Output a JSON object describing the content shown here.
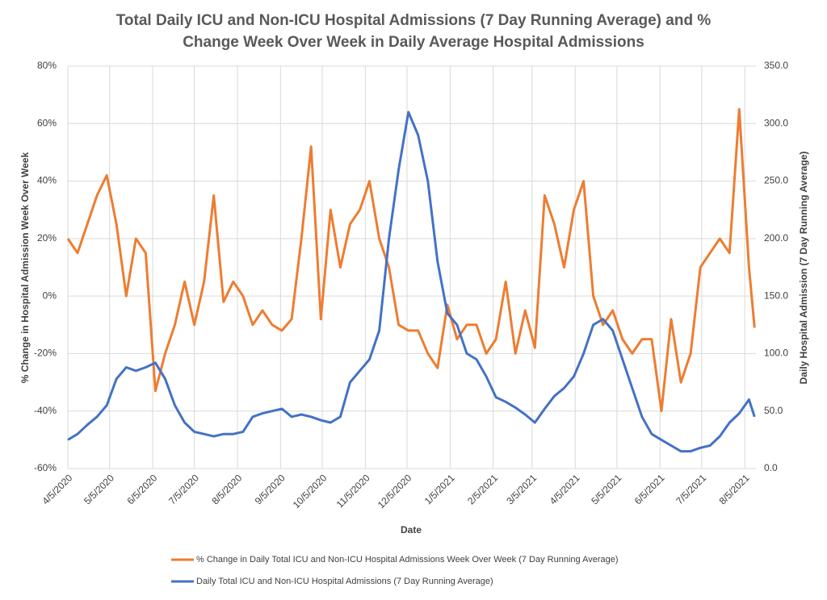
{
  "chart_data": {
    "type": "line",
    "title": "Total Daily ICU and Non-ICU Hospital Admissions (7 Day Running Average) and % Change Week Over Week in Daily Average Hospital Admissions",
    "x_label": "Date",
    "y_label": "% Change in Hospital Admission Week Over Week",
    "y2_label": "Daily Hospital Admission (7 Day Running Average)",
    "x": [
      "4/5/2020",
      "4/12/2020",
      "4/19/2020",
      "4/26/2020",
      "5/3/2020",
      "5/10/2020",
      "5/17/2020",
      "5/24/2020",
      "5/31/2020",
      "6/7/2020",
      "6/14/2020",
      "6/21/2020",
      "6/28/2020",
      "7/5/2020",
      "7/12/2020",
      "7/19/2020",
      "7/26/2020",
      "8/2/2020",
      "8/9/2020",
      "8/16/2020",
      "8/23/2020",
      "8/30/2020",
      "9/6/2020",
      "9/13/2020",
      "9/20/2020",
      "9/27/2020",
      "10/4/2020",
      "10/11/2020",
      "10/18/2020",
      "10/25/2020",
      "11/1/2020",
      "11/8/2020",
      "11/15/2020",
      "11/22/2020",
      "11/29/2020",
      "12/6/2020",
      "12/13/2020",
      "12/20/2020",
      "12/27/2020",
      "1/3/2021",
      "1/10/2021",
      "1/17/2021",
      "1/24/2021",
      "1/31/2021",
      "2/7/2021",
      "2/14/2021",
      "2/21/2021",
      "2/28/2021",
      "3/7/2021",
      "3/14/2021",
      "3/21/2021",
      "3/28/2021",
      "4/4/2021",
      "4/11/2021",
      "4/18/2021",
      "4/25/2021",
      "5/2/2021",
      "5/9/2021",
      "5/16/2021",
      "5/23/2021",
      "5/30/2021",
      "6/6/2021",
      "6/13/2021",
      "6/20/2021",
      "6/27/2021",
      "7/4/2021",
      "7/11/2021",
      "7/18/2021",
      "7/25/2021",
      "8/1/2021",
      "8/8/2021",
      "8/12/2021"
    ],
    "series": [
      {
        "name": "% Change in Daily Total ICU and Non-ICU Hospital Admissions Week Over Week (7 Day Running Average)",
        "color": "#ed7d31",
        "axis": "y",
        "values": [
          20,
          15,
          25,
          35,
          42,
          25,
          0,
          20,
          15,
          -33,
          -20,
          -10,
          5,
          -10,
          5,
          35,
          -2,
          5,
          0,
          -10,
          -5,
          -10,
          -12,
          -8,
          20,
          52,
          -8,
          30,
          10,
          25,
          30,
          40,
          20,
          10,
          -10,
          -12,
          -12,
          -20,
          -25,
          -3,
          -15,
          -10,
          -10,
          -20,
          -15,
          5,
          -20,
          -5,
          -18,
          35,
          25,
          10,
          30,
          40,
          0,
          -10,
          -5,
          -15,
          -20,
          -15,
          -15,
          -40,
          -8,
          -30,
          -20,
          10,
          15,
          20,
          15,
          65,
          10,
          -11
        ]
      },
      {
        "name": "Daily Total ICU and Non-ICU Hospital Admissions (7 Day Running Average)",
        "color": "#4472c4",
        "axis": "y2",
        "values": [
          25,
          30,
          38,
          45,
          55,
          78,
          88,
          85,
          88,
          92,
          78,
          55,
          40,
          32,
          30,
          28,
          30,
          30,
          32,
          45,
          48,
          50,
          52,
          45,
          47,
          45,
          42,
          40,
          45,
          75,
          85,
          95,
          120,
          200,
          260,
          310,
          290,
          250,
          180,
          135,
          125,
          100,
          95,
          80,
          62,
          58,
          53,
          47,
          40,
          52,
          63,
          70,
          80,
          100,
          125,
          130,
          120,
          95,
          70,
          45,
          30,
          25,
          20,
          15,
          15,
          18,
          20,
          28,
          40,
          48,
          60,
          45
        ]
      }
    ],
    "xlim": [
      "4/5/2020",
      "8/13/2021"
    ],
    "xticks": [
      "4/5/2020",
      "5/5/2020",
      "6/5/2020",
      "7/5/2020",
      "8/5/2020",
      "9/5/2020",
      "10/5/2020",
      "11/5/2020",
      "12/5/2020",
      "1/5/2021",
      "2/5/2021",
      "3/5/2021",
      "4/5/2021",
      "5/5/2021",
      "6/5/2021",
      "7/5/2021",
      "8/5/2021"
    ],
    "ylim": [
      -60,
      80
    ],
    "yticks": [
      {
        "value": -60,
        "label": "-60%"
      },
      {
        "value": -40,
        "label": "-40%"
      },
      {
        "value": -20,
        "label": "-20%"
      },
      {
        "value": 0,
        "label": "0%"
      },
      {
        "value": 20,
        "label": "20%"
      },
      {
        "value": 40,
        "label": "40%"
      },
      {
        "value": 60,
        "label": "60%"
      },
      {
        "value": 80,
        "label": "80%"
      }
    ],
    "y2lim": [
      0,
      350
    ],
    "y2ticks": [
      {
        "value": 0,
        "label": "0.0"
      },
      {
        "value": 50,
        "label": "50.0"
      },
      {
        "value": 100,
        "label": "100.0"
      },
      {
        "value": 150,
        "label": "150.0"
      },
      {
        "value": 200,
        "label": "200.0"
      },
      {
        "value": 250,
        "label": "250.0"
      },
      {
        "value": 300,
        "label": "300.0"
      },
      {
        "value": 350,
        "label": "350.0"
      }
    ],
    "grid": true,
    "legend": "bottom"
  }
}
